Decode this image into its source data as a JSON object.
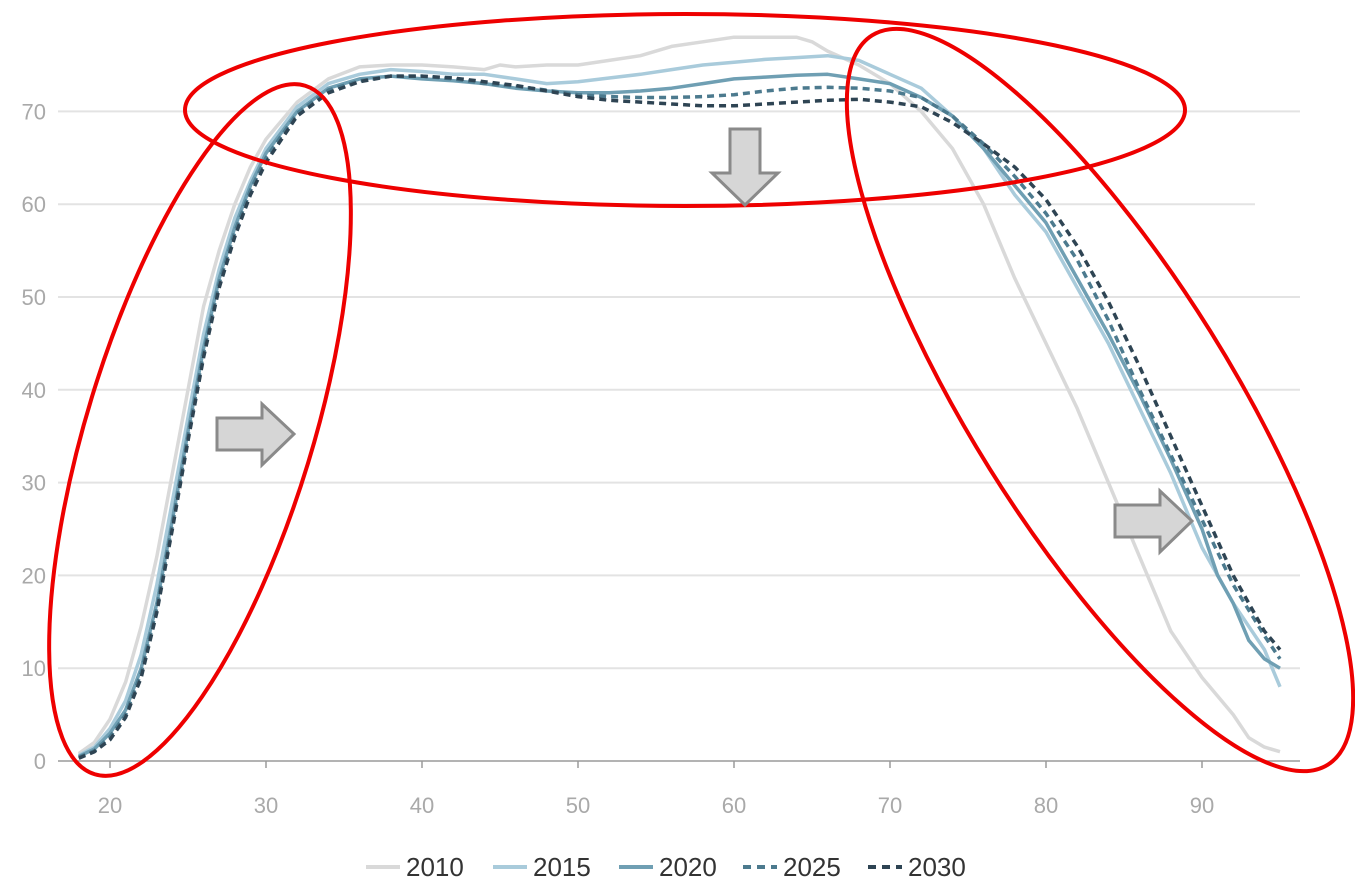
{
  "chart_data": {
    "type": "line",
    "title": "",
    "xlabel": "",
    "ylabel": "",
    "xlim": [
      17,
      97
    ],
    "ylim": [
      0,
      78
    ],
    "x_ticks": [
      "20",
      "30",
      "40",
      "50",
      "60",
      "70",
      "80",
      "90"
    ],
    "y_ticks": [
      "0",
      "10",
      "20",
      "30",
      "40",
      "50",
      "60",
      "70"
    ],
    "grid": "horizontal",
    "legend_position": "bottom",
    "series": [
      {
        "name": "2010",
        "color": "#d9d9d9",
        "dash": "solid",
        "x": [
          18,
          19,
          20,
          21,
          22,
          23,
          24,
          25,
          26,
          27,
          28,
          29,
          30,
          32,
          34,
          36,
          38,
          40,
          42,
          44,
          45,
          46,
          48,
          50,
          52,
          54,
          56,
          58,
          60,
          62,
          64,
          65,
          66,
          68,
          70,
          72,
          74,
          76,
          78,
          80,
          82,
          84,
          86,
          88,
          90,
          92,
          93,
          94,
          95
        ],
        "y": [
          0.8,
          2.0,
          4.5,
          8.5,
          14.5,
          22,
          31,
          40,
          49,
          55,
          60,
          64,
          67,
          71,
          73.5,
          74.8,
          75,
          75,
          74.8,
          74.5,
          75,
          74.8,
          75,
          75,
          75.5,
          76,
          77,
          77.5,
          78,
          78,
          78,
          77.5,
          76.5,
          75,
          73,
          70,
          66,
          60,
          52,
          45,
          38,
          30,
          22,
          14,
          9,
          5,
          2.5,
          1.5,
          1.0
        ]
      },
      {
        "name": "2015",
        "color": "#a9cbdb",
        "dash": "solid",
        "x": [
          18,
          19,
          20,
          21,
          22,
          23,
          24,
          25,
          26,
          27,
          28,
          29,
          30,
          32,
          34,
          36,
          38,
          40,
          42,
          44,
          46,
          48,
          50,
          52,
          54,
          56,
          58,
          60,
          62,
          64,
          66,
          68,
          70,
          72,
          74,
          76,
          78,
          80,
          82,
          84,
          86,
          88,
          90,
          92,
          94,
          95
        ],
        "y": [
          0.6,
          1.5,
          3.5,
          6.5,
          11.5,
          19,
          28,
          37,
          46,
          53,
          58.5,
          62.5,
          66,
          70.5,
          73,
          74,
          74.5,
          74.3,
          74,
          74,
          73.5,
          73,
          73.2,
          73.6,
          74,
          74.5,
          75,
          75.3,
          75.6,
          75.8,
          76,
          75.5,
          74,
          72.5,
          69.5,
          66,
          61,
          57,
          51,
          45,
          38,
          31,
          23,
          17,
          12,
          8
        ]
      },
      {
        "name": "2020",
        "color": "#6f9fb3",
        "dash": "solid",
        "x": [
          18,
          19,
          20,
          21,
          22,
          23,
          24,
          25,
          26,
          27,
          28,
          29,
          30,
          32,
          34,
          36,
          38,
          40,
          42,
          44,
          46,
          48,
          50,
          52,
          54,
          56,
          58,
          60,
          62,
          64,
          66,
          68,
          70,
          72,
          74,
          76,
          78,
          80,
          82,
          84,
          86,
          88,
          90,
          91,
          92,
          93,
          94,
          95
        ],
        "y": [
          0.5,
          1.3,
          3.0,
          5.5,
          10,
          17,
          26,
          35.5,
          44.5,
          52,
          57.5,
          62,
          65.5,
          70,
          72.5,
          73.5,
          73.8,
          73.5,
          73.3,
          73,
          72.5,
          72.2,
          72,
          72,
          72.2,
          72.5,
          73,
          73.5,
          73.7,
          73.9,
          74,
          73.5,
          73,
          71.5,
          69.5,
          66,
          62,
          58,
          52,
          46,
          39.5,
          32.5,
          25,
          20,
          17,
          13,
          11,
          10
        ]
      },
      {
        "name": "2025",
        "color": "#4c7a8e",
        "dash": "dashed",
        "x": [
          18,
          19,
          20,
          21,
          22,
          23,
          24,
          25,
          26,
          27,
          28,
          29,
          30,
          32,
          34,
          36,
          38,
          40,
          42,
          44,
          46,
          48,
          50,
          52,
          54,
          56,
          58,
          60,
          62,
          64,
          66,
          68,
          70,
          72,
          74,
          76,
          78,
          80,
          82,
          84,
          86,
          88,
          90,
          92,
          94,
          95
        ],
        "y": [
          0.4,
          1.1,
          2.6,
          5,
          9.5,
          16.5,
          25.5,
          35,
          44,
          51.5,
          57,
          61.5,
          65,
          69.8,
          72.3,
          73.3,
          73.8,
          73.8,
          73.5,
          73,
          72.7,
          72.3,
          71.8,
          71.6,
          71.5,
          71.5,
          71.6,
          71.8,
          72.2,
          72.5,
          72.6,
          72.5,
          72.2,
          71.5,
          69.5,
          66.5,
          63,
          59,
          54,
          47.5,
          40,
          33,
          26,
          19,
          13.5,
          11
        ]
      },
      {
        "name": "2030",
        "color": "#2e4453",
        "dash": "dashed",
        "x": [
          18,
          19,
          20,
          21,
          22,
          23,
          24,
          25,
          26,
          27,
          28,
          29,
          30,
          32,
          34,
          36,
          38,
          40,
          42,
          44,
          46,
          48,
          50,
          52,
          54,
          56,
          58,
          60,
          62,
          64,
          66,
          68,
          70,
          72,
          74,
          76,
          78,
          80,
          82,
          84,
          86,
          88,
          90,
          92,
          94,
          95
        ],
        "y": [
          0.3,
          1.0,
          2.3,
          4.7,
          9,
          16,
          25,
          34.5,
          43.5,
          51,
          56.5,
          61,
          64.5,
          69.5,
          72,
          73.2,
          73.8,
          73.8,
          73.6,
          73.2,
          72.8,
          72.2,
          71.6,
          71.2,
          71,
          70.8,
          70.6,
          70.6,
          70.8,
          71,
          71.2,
          71.3,
          71,
          70.5,
          68.8,
          66.5,
          64,
          60.5,
          55.5,
          49.5,
          42.5,
          35,
          27.5,
          20,
          14,
          12
        ]
      }
    ]
  }
}
